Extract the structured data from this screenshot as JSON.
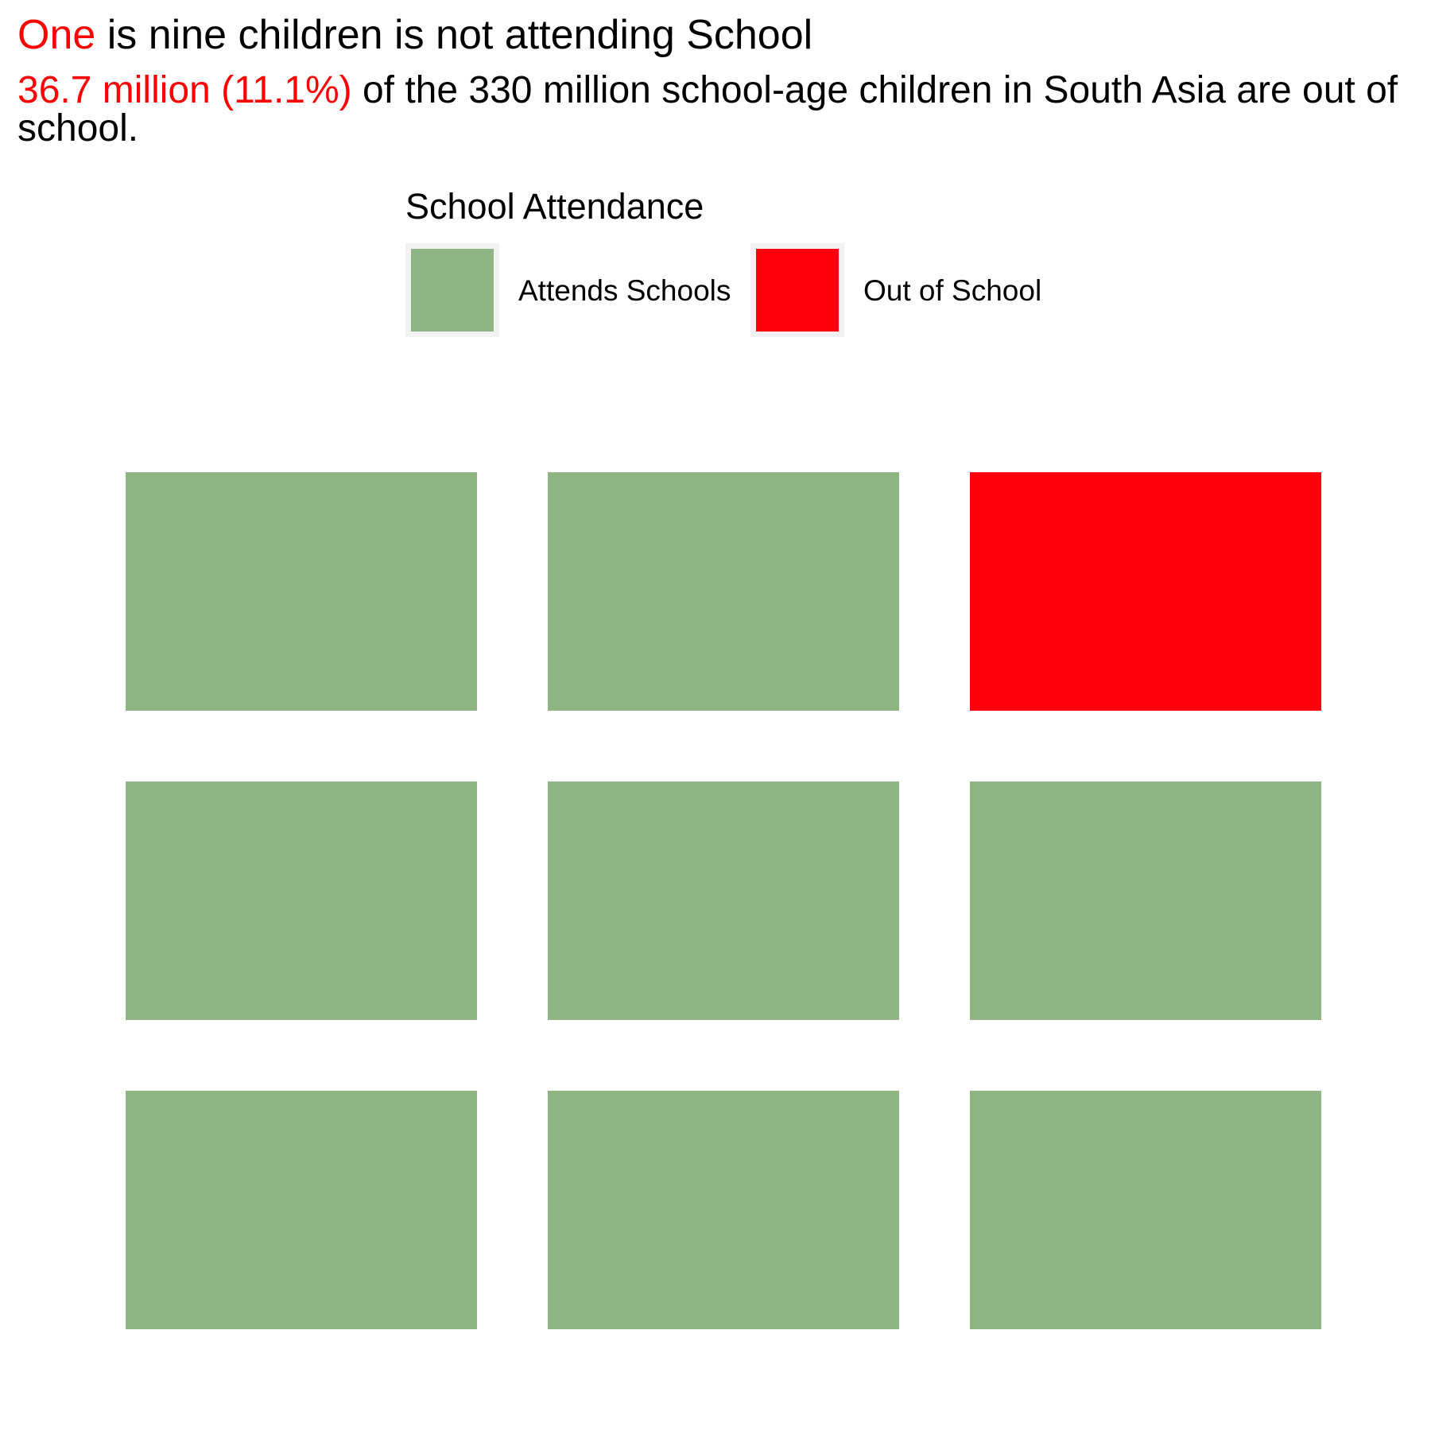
{
  "title": {
    "highlight": "One",
    "rest": " is nine children is not attending School"
  },
  "subtitle": {
    "highlight": "36.7 million (11.1%)",
    "rest": " of the 330 million school-age children in South Asia are out of school."
  },
  "legend": {
    "title": "School Attendance",
    "items": [
      {
        "label": "Attends Schools",
        "color": "#8fb585"
      },
      {
        "label": "Out of School",
        "color": "#ff000d"
      }
    ]
  },
  "chart_data": {
    "type": "heatmap",
    "title": "One  is nine children is not attending School",
    "subtitle": "36.7 million (11.1%) of the 330 million school-age children in South Asia are out of school.",
    "legend_title": "School Attendance",
    "legend_position": "top",
    "grid": false,
    "rows": 3,
    "cols": 3,
    "categories": [
      "Attends Schools",
      "Out of School"
    ],
    "colors": {
      "Attends Schools": "#8fb585",
      "Out of School": "#ff000d"
    },
    "cells": [
      [
        "Attends Schools",
        "Attends Schools",
        "Out of School"
      ],
      [
        "Attends Schools",
        "Attends Schools",
        "Attends Schools"
      ],
      [
        "Attends Schools",
        "Attends Schools",
        "Attends Schools"
      ]
    ],
    "counts": {
      "Attends Schools": 8,
      "Out of School": 1
    }
  }
}
